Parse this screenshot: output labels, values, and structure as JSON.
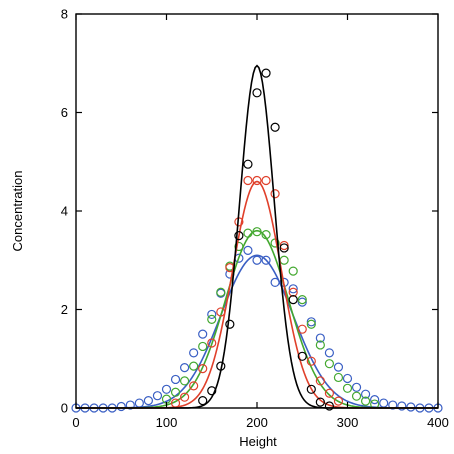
{
  "chart_data": {
    "type": "scatter",
    "title": "",
    "xlabel": "Height",
    "ylabel": "Concentration",
    "xlim": [
      0,
      400
    ],
    "ylim": [
      0,
      8
    ],
    "xticks": [
      "0",
      "100",
      "200",
      "300",
      "400"
    ],
    "yticks": [
      "0",
      "2",
      "4",
      "6",
      "8"
    ],
    "grid": false,
    "legend": "none",
    "series": [
      {
        "color": "#3a5fc4",
        "points_x": [
          0,
          10,
          20,
          30,
          40,
          50,
          60,
          70,
          80,
          90,
          100,
          110,
          120,
          130,
          140,
          150,
          160,
          170,
          180,
          190,
          200,
          210,
          220,
          230,
          240,
          250,
          260,
          270,
          280,
          290,
          300,
          310,
          320,
          330,
          340,
          350,
          360,
          370,
          380,
          390,
          400
        ],
        "points_y": [
          0.0,
          0.0,
          0.0,
          0.0,
          0.0,
          0.03,
          0.06,
          0.1,
          0.15,
          0.25,
          0.38,
          0.58,
          0.82,
          1.12,
          1.5,
          1.9,
          2.33,
          2.72,
          3.04,
          3.2,
          3.0,
          3.0,
          2.55,
          2.55,
          2.42,
          2.15,
          1.75,
          1.42,
          1.12,
          0.83,
          0.6,
          0.42,
          0.28,
          0.17,
          0.1,
          0.06,
          0.04,
          0.02,
          0.0,
          0.0,
          0.0
        ],
        "curve": {
          "peak": 3.1,
          "center": 200,
          "sigma": 40
        }
      },
      {
        "color": "#43a82f",
        "points_x": [
          100,
          110,
          120,
          130,
          140,
          150,
          160,
          170,
          180,
          190,
          200,
          210,
          220,
          230,
          240,
          250,
          260,
          270,
          280,
          290,
          300,
          310,
          320,
          330
        ],
        "points_y": [
          0.18,
          0.32,
          0.55,
          0.85,
          1.25,
          1.8,
          2.35,
          2.88,
          3.28,
          3.55,
          3.58,
          3.52,
          3.35,
          3.0,
          2.78,
          2.2,
          1.7,
          1.28,
          0.9,
          0.62,
          0.4,
          0.24,
          0.14,
          0.08
        ],
        "curve": {
          "peak": 3.6,
          "center": 200,
          "sigma": 35
        }
      },
      {
        "color": "#e0402b",
        "points_x": [
          110,
          120,
          130,
          140,
          150,
          160,
          170,
          180,
          190,
          200,
          210,
          220,
          230,
          240,
          250,
          260,
          270,
          280,
          290
        ],
        "points_y": [
          0.1,
          0.22,
          0.45,
          0.8,
          1.32,
          1.95,
          2.85,
          3.78,
          4.62,
          4.62,
          4.62,
          4.35,
          3.3,
          2.35,
          1.6,
          0.95,
          0.55,
          0.3,
          0.14
        ],
        "curve": {
          "peak": 4.6,
          "center": 200,
          "sigma": 27
        }
      },
      {
        "color": "#000000",
        "points_x": [
          140,
          150,
          160,
          170,
          180,
          190,
          200,
          210,
          220,
          230,
          240,
          250,
          260,
          270,
          280
        ],
        "points_y": [
          0.15,
          0.35,
          0.85,
          1.7,
          3.5,
          4.95,
          6.4,
          6.8,
          5.7,
          3.25,
          2.2,
          1.05,
          0.38,
          0.12,
          0.04
        ],
        "curve": {
          "peak": 6.95,
          "center": 200,
          "sigma": 19
        }
      }
    ]
  }
}
